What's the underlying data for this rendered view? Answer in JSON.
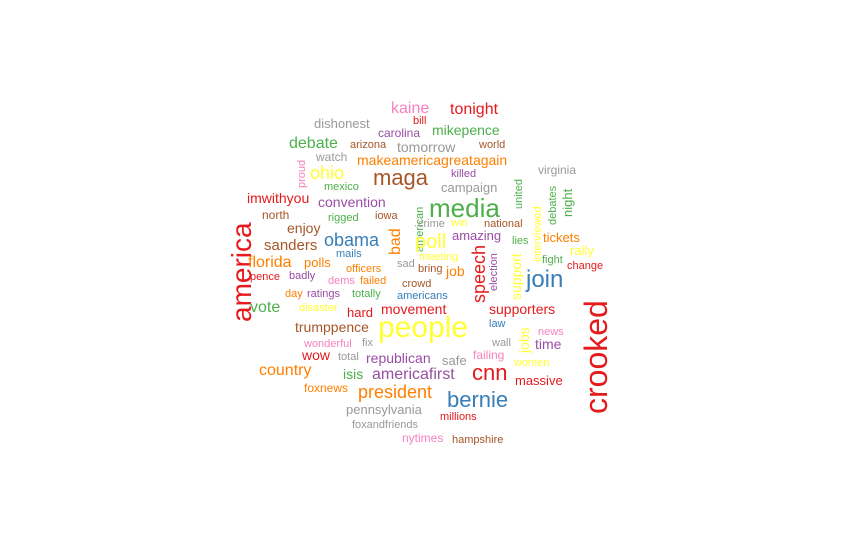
{
  "palette": {
    "red": "#e41a1c",
    "blue": "#377eb8",
    "green": "#4daf4a",
    "purple": "#984ea3",
    "orange": "#ff7f00",
    "yellow": "#ffff33",
    "brown": "#a65628",
    "pink": "#f781bf",
    "grey": "#999999"
  },
  "words": [
    {
      "text": "kaine",
      "color": "pink",
      "size": 16
    },
    {
      "text": "tonight",
      "color": "red",
      "size": 16
    },
    {
      "text": "bill",
      "color": "red",
      "size": 11
    },
    {
      "text": "dishonest",
      "color": "grey",
      "size": 13
    },
    {
      "text": "carolina",
      "color": "purple",
      "size": 12
    },
    {
      "text": "mikepence",
      "color": "green",
      "size": 14
    },
    {
      "text": "debate",
      "color": "green",
      "size": 16
    },
    {
      "text": "arizona",
      "color": "brown",
      "size": 11
    },
    {
      "text": "tomorrow",
      "color": "grey",
      "size": 14
    },
    {
      "text": "world",
      "color": "brown",
      "size": 11
    },
    {
      "text": "watch",
      "color": "grey",
      "size": 12
    },
    {
      "text": "makeamericagreatagain",
      "color": "orange",
      "size": 14
    },
    {
      "text": "proud",
      "color": "pink",
      "size": 11
    },
    {
      "text": "ohio",
      "color": "yellow",
      "size": 18
    },
    {
      "text": "maga",
      "color": "brown",
      "size": 22
    },
    {
      "text": "killed",
      "color": "purple",
      "size": 11
    },
    {
      "text": "virginia",
      "color": "grey",
      "size": 12
    },
    {
      "text": "mexico",
      "color": "green",
      "size": 11
    },
    {
      "text": "campaign",
      "color": "grey",
      "size": 13
    },
    {
      "text": "united",
      "color": "green",
      "size": 11
    },
    {
      "text": "night",
      "color": "green",
      "size": 13
    },
    {
      "text": "imwithyou",
      "color": "red",
      "size": 14
    },
    {
      "text": "convention",
      "color": "purple",
      "size": 14
    },
    {
      "text": "media",
      "color": "green",
      "size": 26
    },
    {
      "text": "debates",
      "color": "green",
      "size": 11
    },
    {
      "text": "north",
      "color": "brown",
      "size": 12
    },
    {
      "text": "rigged",
      "color": "green",
      "size": 11
    },
    {
      "text": "iowa",
      "color": "brown",
      "size": 11
    },
    {
      "text": "american",
      "color": "green",
      "size": 11
    },
    {
      "text": "win",
      "color": "yellow",
      "size": 11
    },
    {
      "text": "national",
      "color": "brown",
      "size": 11
    },
    {
      "text": "interviewed",
      "color": "yellow",
      "size": 11
    },
    {
      "text": "america",
      "color": "red",
      "size": 28
    },
    {
      "text": "enjoy",
      "color": "brown",
      "size": 14
    },
    {
      "text": "crime",
      "color": "grey",
      "size": 11
    },
    {
      "text": "amazing",
      "color": "purple",
      "size": 13
    },
    {
      "text": "bad",
      "color": "orange",
      "size": 16
    },
    {
      "text": "obama",
      "color": "blue",
      "size": 18
    },
    {
      "text": "poll",
      "color": "yellow",
      "size": 20
    },
    {
      "text": "lies",
      "color": "green",
      "size": 11
    },
    {
      "text": "tickets",
      "color": "orange",
      "size": 13
    },
    {
      "text": "sanders",
      "color": "brown",
      "size": 15
    },
    {
      "text": "mails",
      "color": "blue",
      "size": 11
    },
    {
      "text": "meeting",
      "color": "yellow",
      "size": 11
    },
    {
      "text": "speech",
      "color": "red",
      "size": 18
    },
    {
      "text": "join",
      "color": "blue",
      "size": 24
    },
    {
      "text": "rally",
      "color": "yellow",
      "size": 13
    },
    {
      "text": "florida",
      "color": "orange",
      "size": 16
    },
    {
      "text": "polls",
      "color": "orange",
      "size": 13
    },
    {
      "text": "officers",
      "color": "orange",
      "size": 11
    },
    {
      "text": "sad",
      "color": "grey",
      "size": 11
    },
    {
      "text": "election",
      "color": "purple",
      "size": 11
    },
    {
      "text": "fight",
      "color": "green",
      "size": 11
    },
    {
      "text": "change",
      "color": "red",
      "size": 11
    },
    {
      "text": "pence",
      "color": "red",
      "size": 11
    },
    {
      "text": "badly",
      "color": "purple",
      "size": 11
    },
    {
      "text": "dems",
      "color": "pink",
      "size": 11
    },
    {
      "text": "failed",
      "color": "orange",
      "size": 11
    },
    {
      "text": "bring",
      "color": "brown",
      "size": 11
    },
    {
      "text": "job",
      "color": "orange",
      "size": 14
    },
    {
      "text": "support",
      "color": "yellow",
      "size": 14
    },
    {
      "text": "day",
      "color": "orange",
      "size": 11
    },
    {
      "text": "ratings",
      "color": "purple",
      "size": 11
    },
    {
      "text": "crowd",
      "color": "brown",
      "size": 11
    },
    {
      "text": "totally",
      "color": "green",
      "size": 11
    },
    {
      "text": "americans",
      "color": "blue",
      "size": 11
    },
    {
      "text": "crooked",
      "color": "red",
      "size": 32
    },
    {
      "text": "vote",
      "color": "green",
      "size": 16
    },
    {
      "text": "disaster",
      "color": "yellow",
      "size": 11
    },
    {
      "text": "hard",
      "color": "red",
      "size": 13
    },
    {
      "text": "movement",
      "color": "red",
      "size": 14
    },
    {
      "text": "supporters",
      "color": "red",
      "size": 14
    },
    {
      "text": "trumppence",
      "color": "brown",
      "size": 14
    },
    {
      "text": "people",
      "color": "yellow",
      "size": 30
    },
    {
      "text": "law",
      "color": "blue",
      "size": 11
    },
    {
      "text": "jobs",
      "color": "yellow",
      "size": 14
    },
    {
      "text": "news",
      "color": "pink",
      "size": 11
    },
    {
      "text": "wonderful",
      "color": "pink",
      "size": 11
    },
    {
      "text": "fix",
      "color": "grey",
      "size": 11
    },
    {
      "text": "wall",
      "color": "grey",
      "size": 11
    },
    {
      "text": "time",
      "color": "purple",
      "size": 14
    },
    {
      "text": "wow",
      "color": "red",
      "size": 14
    },
    {
      "text": "total",
      "color": "grey",
      "size": 11
    },
    {
      "text": "republican",
      "color": "purple",
      "size": 14
    },
    {
      "text": "safe",
      "color": "grey",
      "size": 13
    },
    {
      "text": "failing",
      "color": "pink",
      "size": 12
    },
    {
      "text": "women",
      "color": "yellow",
      "size": 11
    },
    {
      "text": "country",
      "color": "orange",
      "size": 16
    },
    {
      "text": "isis",
      "color": "green",
      "size": 14
    },
    {
      "text": "americafirst",
      "color": "purple",
      "size": 16
    },
    {
      "text": "cnn",
      "color": "red",
      "size": 22
    },
    {
      "text": "massive",
      "color": "red",
      "size": 13
    },
    {
      "text": "foxnews",
      "color": "orange",
      "size": 12
    },
    {
      "text": "president",
      "color": "orange",
      "size": 18
    },
    {
      "text": "bernie",
      "color": "blue",
      "size": 22
    },
    {
      "text": "pennsylvania",
      "color": "grey",
      "size": 13
    },
    {
      "text": "millions",
      "color": "red",
      "size": 11
    },
    {
      "text": "foxandfriends",
      "color": "grey",
      "size": 11
    },
    {
      "text": "nytimes",
      "color": "pink",
      "size": 12
    },
    {
      "text": "hampshire",
      "color": "brown",
      "size": 11
    }
  ]
}
